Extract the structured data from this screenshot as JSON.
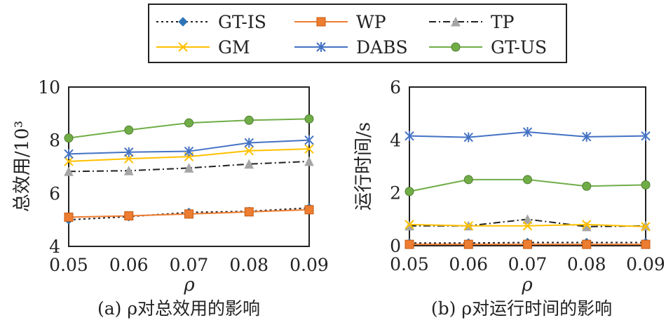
{
  "legend": [
    {
      "name": "GT-IS",
      "color": "#2e75b6",
      "dash": "3,4",
      "marker": "diamond",
      "line_color": "#222222"
    },
    {
      "name": "WP",
      "color": "#ed7d31",
      "dash": "",
      "marker": "square",
      "line_color": "#ed7d31"
    },
    {
      "name": "TP",
      "color": "#a5a5a5",
      "dash": "10,4,2,4",
      "marker": "triangle",
      "line_color": "#222222"
    },
    {
      "name": "GM",
      "color": "#ffc000",
      "dash": "",
      "marker": "x",
      "line_color": "#ffc000"
    },
    {
      "name": "DABS",
      "color": "#4472c4",
      "dash": "",
      "marker": "star",
      "line_color": "#4472c4"
    },
    {
      "name": "GT-US",
      "color": "#70ad47",
      "dash": "",
      "marker": "circle",
      "line_color": "#70ad47"
    }
  ],
  "chart_data": [
    {
      "type": "line",
      "caption": "(a) ρ对总效用的影响",
      "xlabel": "ρ",
      "ylabel": "总效用/10³",
      "x": [
        0.05,
        0.06,
        0.07,
        0.08,
        0.09
      ],
      "x_tick_labels": [
        "0.05",
        "0.06",
        "0.07",
        "0.08",
        "0.09"
      ],
      "ylim": [
        4,
        10
      ],
      "y_ticks": [
        4,
        6,
        8,
        10
      ],
      "y_tick_labels": [
        "4",
        "6",
        "8",
        "10"
      ],
      "series": [
        {
          "name": "GT-IS",
          "values": [
            5.0,
            5.12,
            5.28,
            5.32,
            5.45
          ]
        },
        {
          "name": "WP",
          "values": [
            5.1,
            5.15,
            5.22,
            5.3,
            5.38
          ]
        },
        {
          "name": "TP",
          "values": [
            6.82,
            6.85,
            6.95,
            7.1,
            7.2
          ]
        },
        {
          "name": "GM",
          "values": [
            7.2,
            7.3,
            7.38,
            7.6,
            7.67
          ]
        },
        {
          "name": "DABS",
          "values": [
            7.48,
            7.55,
            7.58,
            7.9,
            8.0
          ]
        },
        {
          "name": "GT-US",
          "values": [
            8.08,
            8.38,
            8.65,
            8.75,
            8.8
          ]
        }
      ]
    },
    {
      "type": "line",
      "caption": "(b) ρ对运行时间的影响",
      "xlabel": "ρ",
      "ylabel": "运行时间/s",
      "x": [
        0.05,
        0.06,
        0.07,
        0.08,
        0.09
      ],
      "x_tick_labels": [
        "0.05",
        "0.06",
        "0.07",
        "0.08",
        "0.09"
      ],
      "ylim": [
        0,
        6
      ],
      "y_ticks": [
        0,
        2,
        4,
        6
      ],
      "y_tick_labels": [
        "0",
        "2",
        "4",
        "6"
      ],
      "series": [
        {
          "name": "GT-IS",
          "values": [
            0.1,
            0.1,
            0.12,
            0.12,
            0.12
          ]
        },
        {
          "name": "WP",
          "values": [
            0.05,
            0.05,
            0.05,
            0.05,
            0.05
          ]
        },
        {
          "name": "TP",
          "values": [
            0.75,
            0.75,
            1.0,
            0.72,
            0.75
          ]
        },
        {
          "name": "GM",
          "values": [
            0.8,
            0.75,
            0.75,
            0.8,
            0.72
          ]
        },
        {
          "name": "DABS",
          "values": [
            4.15,
            4.1,
            4.3,
            4.12,
            4.15
          ]
        },
        {
          "name": "GT-US",
          "values": [
            2.05,
            2.5,
            2.5,
            2.25,
            2.3
          ]
        }
      ]
    }
  ]
}
